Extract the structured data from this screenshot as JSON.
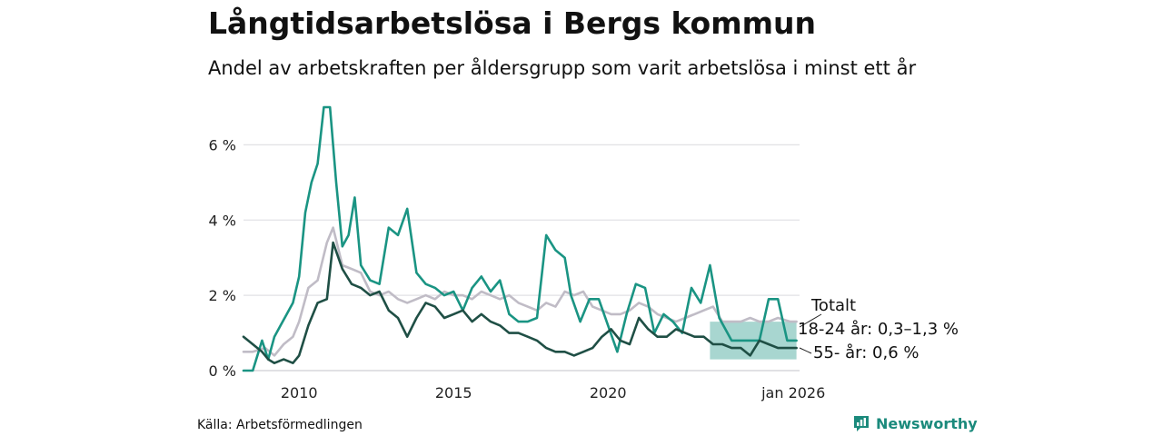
{
  "header": {
    "title": "Långtidsarbetslösa i Bergs kommun",
    "subtitle": "Andel av arbetskraften per åldersgrupp som varit arbetslösa i minst ett år"
  },
  "footer": {
    "source": "Källa: Arbetsförmedlingen",
    "brand": "Newsworthy",
    "brand_color": "#1b8a7c"
  },
  "chart_data": {
    "type": "line",
    "title": "Långtidsarbetslösa i Bergs kommun",
    "xlabel": "",
    "ylabel": "",
    "xlim": [
      2008.2,
      2026.2
    ],
    "ylim": [
      0,
      7
    ],
    "yticks": [
      0,
      2,
      4,
      6
    ],
    "ytick_labels": [
      "0 %",
      "2 %",
      "4 %",
      "6 %"
    ],
    "xticks": [
      2010,
      2015,
      2020,
      2026
    ],
    "xtick_labels": [
      "2010",
      "2015",
      "2020",
      "jan 2026"
    ],
    "grid": true,
    "series": [
      {
        "name": "Totalt",
        "label": "Totalt",
        "color": "#c0bcc6",
        "x": [
          2008.2,
          2008.5,
          2008.9,
          2009.2,
          2009.5,
          2009.8,
          2010.0,
          2010.3,
          2010.6,
          2010.9,
          2011.1,
          2011.4,
          2011.7,
          2012.0,
          2012.3,
          2012.6,
          2012.9,
          2013.2,
          2013.5,
          2013.8,
          2014.1,
          2014.4,
          2014.7,
          2015.0,
          2015.3,
          2015.6,
          2015.9,
          2016.2,
          2016.5,
          2016.8,
          2017.1,
          2017.4,
          2017.7,
          2018.0,
          2018.3,
          2018.6,
          2018.9,
          2019.2,
          2019.5,
          2019.8,
          2020.1,
          2020.4,
          2020.7,
          2021.0,
          2021.3,
          2021.6,
          2021.9,
          2022.2,
          2022.5,
          2022.8,
          2023.1,
          2023.4,
          2023.7,
          2024.0,
          2024.3,
          2024.6,
          2024.9,
          2025.2,
          2025.5,
          2025.9,
          2026.1
        ],
        "y": [
          0.5,
          0.5,
          0.6,
          0.4,
          0.7,
          0.9,
          1.3,
          2.2,
          2.4,
          3.4,
          3.8,
          2.8,
          2.7,
          2.6,
          2.1,
          2.0,
          2.1,
          1.9,
          1.8,
          1.9,
          2.0,
          1.9,
          2.1,
          2.0,
          2.0,
          1.9,
          2.1,
          2.0,
          1.9,
          2.0,
          1.8,
          1.7,
          1.6,
          1.8,
          1.7,
          2.1,
          2.0,
          2.1,
          1.7,
          1.6,
          1.5,
          1.5,
          1.6,
          1.8,
          1.7,
          1.5,
          1.4,
          1.3,
          1.4,
          1.5,
          1.6,
          1.7,
          1.3,
          1.3,
          1.3,
          1.4,
          1.3,
          1.3,
          1.4,
          1.3,
          1.3
        ]
      },
      {
        "name": "18-24 år",
        "label": "18-24 år: 0,3–1,3 %",
        "color": "#1a9483",
        "x": [
          2008.2,
          2008.5,
          2008.8,
          2009.0,
          2009.2,
          2009.4,
          2009.6,
          2009.8,
          2010.0,
          2010.2,
          2010.4,
          2010.6,
          2010.8,
          2011.0,
          2011.2,
          2011.4,
          2011.6,
          2011.8,
          2012.0,
          2012.3,
          2012.6,
          2012.9,
          2013.2,
          2013.5,
          2013.8,
          2014.1,
          2014.4,
          2014.7,
          2015.0,
          2015.3,
          2015.6,
          2015.9,
          2016.2,
          2016.5,
          2016.8,
          2017.1,
          2017.4,
          2017.7,
          2018.0,
          2018.3,
          2018.6,
          2018.8,
          2019.1,
          2019.4,
          2019.7,
          2020.0,
          2020.3,
          2020.6,
          2020.9,
          2021.2,
          2021.5,
          2021.8,
          2022.1,
          2022.4,
          2022.7,
          2023.0,
          2023.3,
          2023.6,
          2024.0,
          2024.3,
          2024.6,
          2024.9,
          2025.2,
          2025.5,
          2025.8,
          2026.1
        ],
        "y": [
          0,
          0,
          0.8,
          0.3,
          0.9,
          1.2,
          1.5,
          1.8,
          2.5,
          4.2,
          5.0,
          5.5,
          7.0,
          7.0,
          5.0,
          3.3,
          3.6,
          4.6,
          2.8,
          2.4,
          2.3,
          3.8,
          3.6,
          4.3,
          2.6,
          2.3,
          2.2,
          2.0,
          2.1,
          1.6,
          2.2,
          2.5,
          2.1,
          2.4,
          1.5,
          1.3,
          1.3,
          1.4,
          3.6,
          3.2,
          3.0,
          2.0,
          1.3,
          1.9,
          1.9,
          1.2,
          0.5,
          1.5,
          2.3,
          2.2,
          1.0,
          1.5,
          1.3,
          1.0,
          2.2,
          1.8,
          2.8,
          1.4,
          0.8,
          0.8,
          0.8,
          0.8,
          1.9,
          1.9,
          0.8,
          0.8
        ]
      },
      {
        "name": "55- år",
        "label": "55- år: 0,6 %",
        "color": "#1f4f45",
        "x": [
          2008.2,
          2008.5,
          2008.8,
          2009.0,
          2009.2,
          2009.5,
          2009.8,
          2010.0,
          2010.3,
          2010.6,
          2010.9,
          2011.1,
          2011.4,
          2011.7,
          2012.0,
          2012.3,
          2012.6,
          2012.9,
          2013.2,
          2013.5,
          2013.8,
          2014.1,
          2014.4,
          2014.7,
          2015.0,
          2015.3,
          2015.6,
          2015.9,
          2016.2,
          2016.5,
          2016.8,
          2017.1,
          2017.4,
          2017.7,
          2018.0,
          2018.3,
          2018.6,
          2018.9,
          2019.2,
          2019.5,
          2019.8,
          2020.1,
          2020.4,
          2020.7,
          2021.0,
          2021.3,
          2021.6,
          2021.9,
          2022.2,
          2022.5,
          2022.8,
          2023.1,
          2023.4,
          2023.7,
          2024.0,
          2024.3,
          2024.6,
          2024.9,
          2025.2,
          2025.5,
          2025.8,
          2026.1
        ],
        "y": [
          0.9,
          0.7,
          0.5,
          0.3,
          0.2,
          0.3,
          0.2,
          0.4,
          1.2,
          1.8,
          1.9,
          3.4,
          2.7,
          2.3,
          2.2,
          2.0,
          2.1,
          1.6,
          1.4,
          0.9,
          1.4,
          1.8,
          1.7,
          1.4,
          1.5,
          1.6,
          1.3,
          1.5,
          1.3,
          1.2,
          1.0,
          1.0,
          0.9,
          0.8,
          0.6,
          0.5,
          0.5,
          0.4,
          0.5,
          0.6,
          0.9,
          1.1,
          0.8,
          0.7,
          1.4,
          1.1,
          0.9,
          0.9,
          1.1,
          1.0,
          0.9,
          0.9,
          0.7,
          0.7,
          0.6,
          0.6,
          0.4,
          0.8,
          0.7,
          0.6,
          0.6,
          0.6
        ]
      }
    ],
    "range_bands": [
      {
        "series": "18-24 år",
        "color": "#1a9483",
        "x": [
          2023.3,
          2024.0,
          2024.7,
          2025.1,
          2026.1
        ],
        "low": [
          0.3,
          0.3,
          0.3,
          0.3,
          0.3
        ],
        "high": [
          1.3,
          1.3,
          1.3,
          1.3,
          1.3
        ]
      }
    ]
  }
}
